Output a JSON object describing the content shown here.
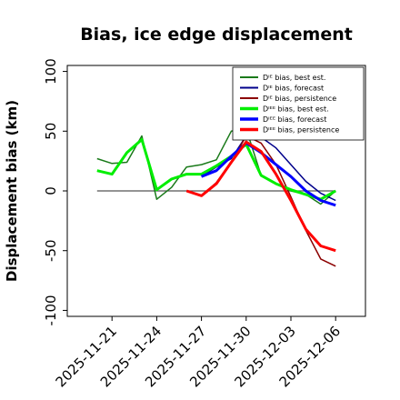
{
  "chart_data": {
    "type": "line",
    "title": "Bias, ice edge displacement",
    "xlabel": "",
    "ylabel": "Displacement bias (km)",
    "x_ticks": [
      "2025-11-21",
      "2025-11-24",
      "2025-11-27",
      "2025-11-30",
      "2025-12-03",
      "2025-12-06"
    ],
    "highlight_tick": "2025-11-27",
    "highlight_color": "#228b22",
    "ylim": [
      -105,
      105
    ],
    "y_ticks": [
      -100,
      -50,
      0,
      50,
      100
    ],
    "xlim": [
      "2025-11-18",
      "2025-12-08"
    ],
    "legend_position": "top-right",
    "grid": false,
    "zero_line": true,
    "series": [
      {
        "name": "Dᴵᴱ bias, best est.",
        "color": "#1a7a1a",
        "width": 1.5,
        "x": [
          "2025-11-20",
          "2025-11-21",
          "2025-11-22",
          "2025-11-23",
          "2025-11-24",
          "2025-11-25",
          "2025-11-26",
          "2025-11-27",
          "2025-11-28",
          "2025-11-29",
          "2025-11-30",
          "2025-12-01",
          "2025-12-02",
          "2025-12-03",
          "2025-12-04",
          "2025-12-05",
          "2025-12-06"
        ],
        "y": [
          27,
          23,
          24,
          46,
          -7,
          3,
          20,
          22,
          26,
          50,
          52,
          13,
          6,
          0,
          -3,
          -11,
          0
        ]
      },
      {
        "name": "Dᴵᴱ bias, forecast",
        "color": "#00008b",
        "width": 1.5,
        "x": [
          "2025-11-27",
          "2025-11-28",
          "2025-11-29",
          "2025-11-30",
          "2025-12-01",
          "2025-12-02",
          "2025-12-03",
          "2025-12-04",
          "2025-12-05",
          "2025-12-06"
        ],
        "y": [
          12,
          20,
          27,
          46,
          45,
          36,
          22,
          8,
          -2,
          -8
        ]
      },
      {
        "name": "Dᴵᴱ bias, persistence",
        "color": "#8b0000",
        "width": 1.5,
        "x": [
          "2025-11-26",
          "2025-11-27",
          "2025-11-28",
          "2025-11-29",
          "2025-11-30",
          "2025-12-01",
          "2025-12-02",
          "2025-12-03",
          "2025-12-04",
          "2025-12-05",
          "2025-12-06"
        ],
        "y": [
          0,
          -4,
          7,
          24,
          46,
          40,
          22,
          -5,
          -33,
          -57,
          -63
        ]
      },
      {
        "name": "Dᴵᴱᴱ bias, best est.",
        "color": "#00ee00",
        "width": 3,
        "x": [
          "2025-11-20",
          "2025-11-21",
          "2025-11-22",
          "2025-11-23",
          "2025-11-24",
          "2025-11-25",
          "2025-11-26",
          "2025-11-27",
          "2025-11-28",
          "2025-11-29",
          "2025-11-30",
          "2025-12-01",
          "2025-12-02",
          "2025-12-03",
          "2025-12-04",
          "2025-12-05",
          "2025-12-06"
        ],
        "y": [
          17,
          14,
          32,
          43,
          1,
          10,
          14,
          14,
          21,
          29,
          39,
          13,
          6,
          1,
          -3,
          -7,
          0
        ]
      },
      {
        "name": "Dᴵᴱᴱ bias, forecast",
        "color": "#0000ff",
        "width": 3,
        "x": [
          "2025-11-27",
          "2025-11-28",
          "2025-11-29",
          "2025-11-30",
          "2025-12-01",
          "2025-12-02",
          "2025-12-03",
          "2025-12-04",
          "2025-12-05",
          "2025-12-06"
        ],
        "y": [
          12,
          17,
          29,
          40,
          32,
          22,
          12,
          0,
          -8,
          -12
        ]
      },
      {
        "name": "Dᴵᴱᴱ bias, persistence",
        "color": "#ff0000",
        "width": 3,
        "x": [
          "2025-11-26",
          "2025-11-27",
          "2025-11-28",
          "2025-11-29",
          "2025-11-30",
          "2025-12-01",
          "2025-12-02",
          "2025-12-03",
          "2025-12-04",
          "2025-12-05",
          "2025-12-06"
        ],
        "y": [
          0,
          -4,
          6,
          24,
          41,
          33,
          14,
          -8,
          -32,
          -46,
          -50
        ]
      }
    ]
  }
}
